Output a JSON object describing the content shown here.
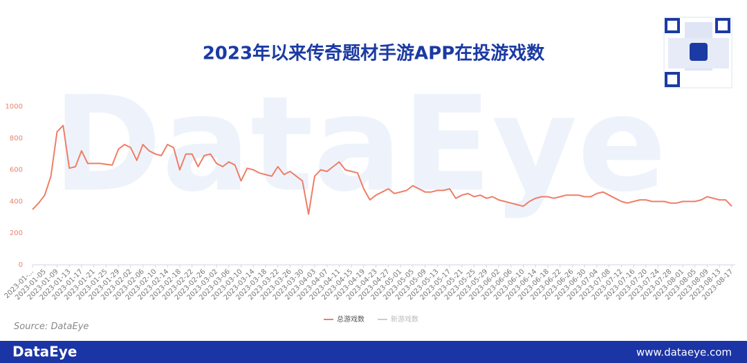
{
  "chart_data": {
    "type": "line",
    "title": "2023年以来传奇题材手游APP在投游戏数",
    "source": "Source: DataEye",
    "watermark": "DataEye",
    "brand": "DataEye",
    "website": "www.dataeye.com",
    "categories": [
      "2023-01-...",
      null,
      "2023-01-05",
      null,
      "2023-01-09",
      null,
      "2023-01-13",
      null,
      "2023-01-17",
      null,
      "2023-01-21",
      null,
      "2023-01-25",
      null,
      "2023-01-29",
      null,
      "2023-02-02",
      null,
      "2023-02-06",
      null,
      "2023-02-10",
      null,
      "2023-02-14",
      null,
      "2023-02-18",
      null,
      "2023-02-22",
      null,
      "2023-02-26",
      null,
      "2023-03-02",
      null,
      "2023-03-06",
      null,
      "2023-03-10",
      null,
      "2023-03-14",
      null,
      "2023-03-18",
      null,
      "2023-03-22",
      null,
      "2023-03-26",
      null,
      "2023-03-30",
      null,
      "2023-04-03",
      null,
      "2023-04-07",
      null,
      "2023-04-11",
      null,
      "2023-04-15",
      null,
      "2023-04-19",
      null,
      "2023-04-23",
      null,
      "2023-04-27",
      null,
      "2023-05-01",
      null,
      "2023-05-05",
      null,
      "2023-05-09",
      null,
      "2023-05-13",
      null,
      "2023-05-17",
      null,
      "2023-05-21",
      null,
      "2023-05-25",
      null,
      "2023-05-29",
      null,
      "2023-06-02",
      null,
      "2023-06-06",
      null,
      "2023-06-10",
      null,
      "2023-06-14",
      null,
      "2023-06-18",
      null,
      "2023-06-22",
      null,
      "2023-06-26",
      null,
      "2023-06-30",
      null,
      "2023-07-04",
      null,
      "2023-07-08",
      null,
      "2023-07-12",
      null,
      "2023-07-16",
      null,
      "2023-07-20",
      null,
      "2023-07-24",
      null,
      "2023-07-28",
      null,
      "2023-08-01",
      null,
      "2023-08-05",
      null,
      "2023-08-09",
      null,
      "2023-08-13",
      null,
      "2023-08-17"
    ],
    "series": [
      {
        "name": "总游戏数",
        "color": "#ef7d65",
        "visible": true,
        "values": [
          350,
          390,
          440,
          560,
          840,
          880,
          610,
          620,
          720,
          640,
          640,
          640,
          635,
          630,
          730,
          760,
          740,
          660,
          760,
          720,
          700,
          690,
          760,
          740,
          600,
          700,
          700,
          620,
          690,
          700,
          640,
          620,
          650,
          630,
          530,
          610,
          600,
          580,
          570,
          560,
          620,
          570,
          590,
          560,
          530,
          320,
          560,
          600,
          590,
          620,
          650,
          600,
          590,
          580,
          480,
          410,
          440,
          460,
          480,
          450,
          460,
          470,
          500,
          480,
          460,
          460,
          470,
          470,
          480,
          420,
          440,
          450,
          430,
          440,
          420,
          430,
          410,
          400,
          390,
          380,
          370,
          400,
          420,
          430,
          430,
          420,
          430,
          440,
          440,
          440,
          430,
          430,
          450,
          460,
          440,
          420,
          400,
          390,
          400,
          410,
          410,
          400,
          400,
          400,
          390,
          390,
          400,
          400,
          400,
          410,
          430,
          420,
          410,
          410,
          370
        ]
      },
      {
        "name": "新游戏数",
        "color": "#c8c8c8",
        "visible": false,
        "values": [
          null,
          null,
          null,
          null,
          null,
          null,
          null,
          null,
          null,
          null,
          null,
          null,
          null,
          null,
          null,
          null,
          null,
          null,
          null,
          null,
          null,
          null,
          null,
          null,
          null,
          null,
          null,
          null,
          null,
          null,
          null,
          null,
          null,
          null,
          null,
          null,
          null,
          null,
          null,
          null,
          null,
          null,
          null,
          null,
          null,
          null,
          null,
          null,
          null,
          null,
          null,
          null,
          null,
          null,
          null,
          null,
          null,
          null,
          null,
          null,
          null,
          null,
          null,
          null,
          null,
          null,
          null,
          null,
          null,
          null,
          null,
          null,
          null,
          null,
          null,
          null,
          null,
          null,
          null,
          null,
          null,
          null,
          null,
          null,
          null,
          null,
          null,
          null,
          null,
          null,
          null,
          null,
          null,
          null,
          null,
          null,
          null,
          null,
          null,
          null,
          null,
          null,
          null,
          null,
          null,
          null,
          null,
          null,
          null,
          null,
          null,
          null,
          null,
          null,
          null
        ]
      }
    ],
    "ylim": [
      0,
      1000
    ],
    "yticks": [
      0,
      200,
      400,
      600,
      800,
      1000
    ],
    "grid": false
  }
}
